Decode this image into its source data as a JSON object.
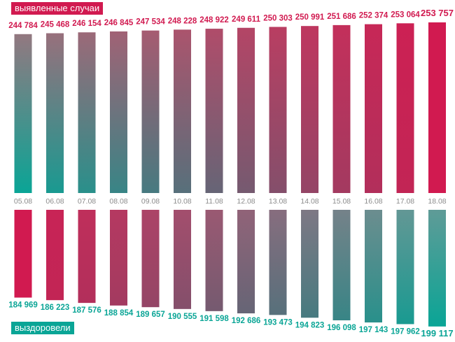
{
  "colors": {
    "pink": "#d11a50",
    "teal": "#0aa596",
    "date_text": "#8c8c8c"
  },
  "labels": {
    "top_series": "выявленные случаи",
    "bottom_series": "выздоровели"
  },
  "chart_data": {
    "type": "bar",
    "title": "",
    "xlabel": "",
    "ylabel": "",
    "categories": [
      "05.08",
      "06.08",
      "07.08",
      "08.08",
      "09.08",
      "10.08",
      "11.08",
      "12.08",
      "13.08",
      "14.08",
      "15.08",
      "16.08",
      "17.08",
      "18.08"
    ],
    "series": [
      {
        "name": "выявленные случаи",
        "values": [
          244784,
          245468,
          246154,
          246845,
          247534,
          248228,
          248922,
          249611,
          250303,
          250991,
          251686,
          252374,
          253064,
          253757
        ],
        "display": [
          "244 784",
          "245 468",
          "246 154",
          "246 845",
          "247 534",
          "248 228",
          "248 922",
          "249 611",
          "250 303",
          "250 991",
          "251 686",
          "252 374",
          "253 064",
          "253 757"
        ]
      },
      {
        "name": "выздоровели",
        "values": [
          184969,
          186223,
          187576,
          188854,
          189657,
          190555,
          191598,
          192686,
          193473,
          194823,
          196098,
          197143,
          197962,
          199117
        ],
        "display": [
          "184 969",
          "186 223",
          "187 576",
          "188 854",
          "189 657",
          "190 555",
          "191 598",
          "192 686",
          "193 473",
          "194 823",
          "196 098",
          "197 143",
          "197 962",
          "199 117"
        ]
      }
    ],
    "grid": false,
    "legend": "none"
  }
}
